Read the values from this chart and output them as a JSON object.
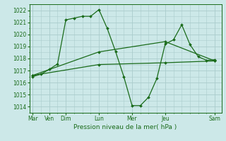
{
  "background_color": "#cce8e8",
  "plot_bg_color": "#cce8e8",
  "grid_color": "#aacccc",
  "line_color": "#1a6b1a",
  "ylim": [
    1013.5,
    1022.5
  ],
  "yticks": [
    1014,
    1015,
    1016,
    1017,
    1018,
    1019,
    1020,
    1021,
    1022
  ],
  "x_ticks_major": [
    0,
    1,
    2,
    4,
    6,
    8,
    11
  ],
  "x_tick_labels": [
    "Mar",
    "Ven",
    "Dim",
    "Lun",
    "Mer",
    "Jeu",
    "Sam"
  ],
  "xlim": [
    -0.2,
    11.4
  ],
  "xlabel": "Pression niveau de la mer( hPa )",
  "series1": [
    [
      0,
      1016.5
    ],
    [
      0.5,
      1016.7
    ],
    [
      1,
      1017.1
    ],
    [
      1.5,
      1017.55
    ],
    [
      2,
      1021.2
    ],
    [
      2.5,
      1021.35
    ],
    [
      3,
      1021.5
    ],
    [
      3.5,
      1021.5
    ],
    [
      4,
      1022.05
    ],
    [
      4.5,
      1020.5
    ],
    [
      5,
      1018.6
    ],
    [
      5.5,
      1016.5
    ],
    [
      6,
      1014.1
    ],
    [
      6.5,
      1014.1
    ],
    [
      7,
      1014.8
    ],
    [
      7.5,
      1016.35
    ],
    [
      8,
      1019.2
    ],
    [
      8.5,
      1019.55
    ],
    [
      9,
      1020.8
    ],
    [
      9.5,
      1019.15
    ],
    [
      10,
      1018.15
    ],
    [
      10.5,
      1017.85
    ],
    [
      11,
      1017.9
    ]
  ],
  "series2": [
    [
      0,
      1016.6
    ],
    [
      4,
      1018.55
    ],
    [
      8,
      1019.4
    ],
    [
      11,
      1017.8
    ]
  ],
  "series3": [
    [
      0,
      1016.6
    ],
    [
      4,
      1017.5
    ],
    [
      8,
      1017.65
    ],
    [
      11,
      1017.8
    ]
  ]
}
